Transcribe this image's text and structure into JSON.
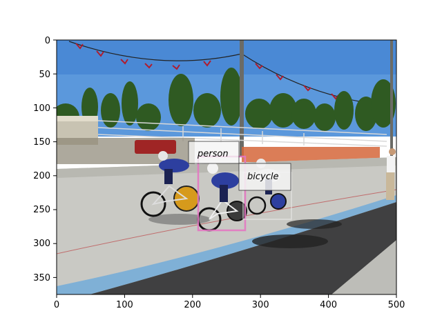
{
  "figure": {
    "x_ticks": [
      "0",
      "100",
      "200",
      "300",
      "400",
      "500"
    ],
    "y_ticks": [
      "0",
      "50",
      "100",
      "150",
      "200",
      "250",
      "300",
      "350"
    ]
  },
  "detections": [
    {
      "label": "person",
      "color": "#e377c2"
    },
    {
      "label": "bicycle",
      "color": "#e8e8e8"
    }
  ],
  "colors": {
    "sky": "#4f8fd6",
    "track": "#c9c9c4",
    "asphalt": "#3f3f40",
    "blue_lane": "#7fb0d6",
    "trees": "#2f5a22",
    "fence": "#d5663a",
    "rider_jersey": "#2d3f9f"
  }
}
